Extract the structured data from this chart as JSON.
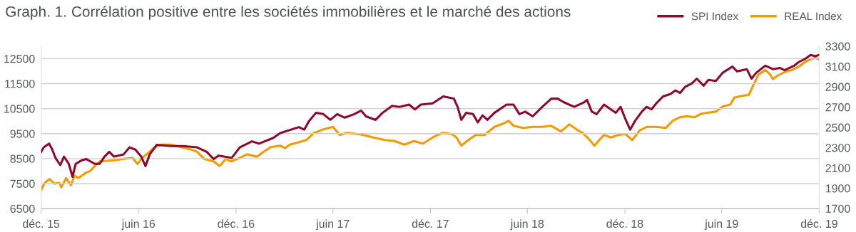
{
  "chart_data": {
    "type": "line",
    "title": "Graph. 1. Corrélation positive entre les sociétés immobilières et le marché des actions",
    "legend": "top right",
    "grid": "y",
    "marker": "none",
    "line_style": "solid",
    "xlim": [
      "2015-12-01",
      "2019-12-01"
    ],
    "xticks": [
      {
        "value": "2015-12-01",
        "label": "déc. 15"
      },
      {
        "value": "2016-06-01",
        "label": "juin 16"
      },
      {
        "value": "2016-12-01",
        "label": "déc. 16"
      },
      {
        "value": "2017-06-01",
        "label": "juin 17"
      },
      {
        "value": "2017-12-01",
        "label": "déc. 17"
      },
      {
        "value": "2018-06-01",
        "label": "juin 18"
      },
      {
        "value": "2018-12-01",
        "label": "déc. 18"
      },
      {
        "value": "2019-06-01",
        "label": "juin 19"
      },
      {
        "value": "2019-12-01",
        "label": "déc. 19"
      }
    ],
    "ylim": [
      6500,
      13000
    ],
    "yticks": [
      6500,
      7500,
      8500,
      9500,
      10500,
      11500,
      12500
    ],
    "y2lim": [
      1700,
      3300
    ],
    "y2ticks": [
      1700,
      1900,
      2100,
      2300,
      2500,
      2700,
      2900,
      3100,
      3300
    ],
    "series": [
      {
        "name": "SPI Index",
        "color": "#8b0a2e",
        "x": [
          "2015-12-01",
          "2015-12-06",
          "2015-12-16",
          "2015-12-22",
          "2015-12-28",
          "2016-01-06",
          "2016-01-13",
          "2016-01-22",
          "2016-01-29",
          "2016-02-04",
          "2016-02-15",
          "2016-02-24",
          "2016-03-11",
          "2016-03-20",
          "2016-03-29",
          "2016-04-07",
          "2016-04-16",
          "2016-05-04",
          "2016-05-15",
          "2016-05-26",
          "2016-06-06",
          "2016-06-14",
          "2016-06-22",
          "2016-07-05",
          "2016-08-01",
          "2016-08-23",
          "2016-09-19",
          "2016-10-07",
          "2016-10-20",
          "2016-10-29",
          "2016-11-23",
          "2016-12-08",
          "2016-12-31",
          "2017-01-13",
          "2017-02-09",
          "2017-02-22",
          "2017-03-29",
          "2017-04-08",
          "2017-04-17",
          "2017-04-30",
          "2017-05-14",
          "2017-05-27",
          "2017-06-09",
          "2017-06-23",
          "2017-07-11",
          "2017-07-24",
          "2017-08-02",
          "2017-08-20",
          "2017-09-02",
          "2017-09-20",
          "2017-10-04",
          "2017-10-22",
          "2017-11-02",
          "2017-11-13",
          "2017-12-05",
          "2017-12-25",
          "2018-01-14",
          "2018-01-21",
          "2018-01-28",
          "2018-02-06",
          "2018-02-19",
          "2018-02-28",
          "2018-03-09",
          "2018-03-18",
          "2018-03-31",
          "2018-04-23",
          "2018-05-06",
          "2018-05-17",
          "2018-05-28",
          "2018-06-11",
          "2018-06-29",
          "2018-07-16",
          "2018-07-28",
          "2018-08-08",
          "2018-08-28",
          "2018-09-16",
          "2018-09-21",
          "2018-09-30",
          "2018-10-09",
          "2018-10-23",
          "2018-11-14",
          "2018-11-23",
          "2018-12-02",
          "2018-12-11",
          "2018-12-20",
          "2019-01-02",
          "2019-01-11",
          "2019-01-20",
          "2019-01-29",
          "2019-02-11",
          "2019-02-25",
          "2019-03-06",
          "2019-03-15",
          "2019-03-24",
          "2019-04-06",
          "2019-04-15",
          "2019-04-28",
          "2019-05-07",
          "2019-05-21",
          "2019-06-03",
          "2019-06-21",
          "2019-06-30",
          "2019-07-18",
          "2019-07-27",
          "2019-08-05",
          "2019-08-22",
          "2019-09-05",
          "2019-09-18",
          "2019-09-27",
          "2019-10-15",
          "2019-10-24",
          "2019-11-06",
          "2019-11-15",
          "2019-11-24",
          "2019-12-01"
        ],
        "values": [
          8770,
          8950,
          9100,
          8860,
          8530,
          8240,
          8580,
          8290,
          7770,
          8290,
          8430,
          8480,
          8290,
          8290,
          8580,
          8770,
          8580,
          8670,
          8950,
          8860,
          8580,
          8200,
          8670,
          9050,
          9000,
          9000,
          8950,
          8770,
          8480,
          8620,
          8530,
          8950,
          9190,
          9100,
          9330,
          9520,
          9760,
          9660,
          10000,
          10330,
          10280,
          10050,
          10280,
          10140,
          10280,
          10420,
          10190,
          10050,
          10330,
          10610,
          10570,
          10660,
          10470,
          10660,
          10710,
          10990,
          10900,
          10570,
          10050,
          10330,
          10280,
          9950,
          10230,
          10050,
          10330,
          10660,
          10660,
          10280,
          10380,
          10190,
          10570,
          10900,
          10900,
          10760,
          10570,
          10760,
          10850,
          10380,
          10280,
          10660,
          10330,
          10570,
          10090,
          9660,
          10000,
          10380,
          10570,
          10470,
          10710,
          10990,
          11090,
          11230,
          11130,
          11370,
          11510,
          11700,
          11420,
          11650,
          11610,
          11940,
          12180,
          11990,
          12080,
          11700,
          11940,
          12220,
          12080,
          12130,
          12040,
          12220,
          12370,
          12510,
          12650,
          12600,
          12650
        ]
      },
      {
        "name": "REAL Index",
        "color": "#f29a00",
        "axis": "y2",
        "x": [
          "2015-12-01",
          "2015-12-08",
          "2015-12-17",
          "2015-12-26",
          "2016-01-04",
          "2016-01-08",
          "2016-01-17",
          "2016-01-26",
          "2016-02-02",
          "2016-02-09",
          "2016-02-22",
          "2016-03-02",
          "2016-03-11",
          "2016-03-20",
          "2016-04-16",
          "2016-05-04",
          "2016-05-21",
          "2016-05-30",
          "2016-06-08",
          "2016-06-22",
          "2016-07-01",
          "2016-07-14",
          "2016-08-01",
          "2016-08-19",
          "2016-09-06",
          "2016-09-19",
          "2016-10-02",
          "2016-10-20",
          "2016-10-31",
          "2016-11-12",
          "2016-11-21",
          "2016-12-04",
          "2016-12-22",
          "2017-01-09",
          "2017-01-22",
          "2017-02-04",
          "2017-02-22",
          "2017-03-03",
          "2017-03-12",
          "2017-03-29",
          "2017-04-12",
          "2017-04-26",
          "2017-05-14",
          "2017-06-01",
          "2017-06-14",
          "2017-06-27",
          "2017-07-15",
          "2017-07-29",
          "2017-08-16",
          "2017-09-07",
          "2017-09-25",
          "2017-10-13",
          "2017-10-31",
          "2017-11-17",
          "2017-12-05",
          "2017-12-23",
          "2018-01-10",
          "2018-01-19",
          "2018-01-28",
          "2018-02-10",
          "2018-02-24",
          "2018-03-13",
          "2018-03-31",
          "2018-04-18",
          "2018-04-27",
          "2018-05-06",
          "2018-05-24",
          "2018-06-11",
          "2018-06-29",
          "2018-07-16",
          "2018-08-03",
          "2018-08-19",
          "2018-09-04",
          "2018-09-13",
          "2018-09-26",
          "2018-10-05",
          "2018-10-14",
          "2018-10-23",
          "2018-11-05",
          "2018-11-19",
          "2018-12-02",
          "2018-12-15",
          "2018-12-29",
          "2019-01-11",
          "2019-01-29",
          "2019-02-16",
          "2019-03-01",
          "2019-03-15",
          "2019-03-28",
          "2019-04-11",
          "2019-04-24",
          "2019-05-07",
          "2019-05-21",
          "2019-06-03",
          "2019-06-17",
          "2019-06-25",
          "2019-07-09",
          "2019-07-22",
          "2019-07-31",
          "2019-08-09",
          "2019-08-22",
          "2019-08-31",
          "2019-09-05",
          "2019-09-14",
          "2019-09-27",
          "2019-10-11",
          "2019-10-24",
          "2019-11-06",
          "2019-11-15",
          "2019-11-24",
          "2019-12-01"
        ],
        "values": [
          1885,
          1955,
          1990,
          1945,
          1955,
          1910,
          2000,
          1930,
          2025,
          2000,
          2050,
          2070,
          2120,
          2165,
          2175,
          2190,
          2200,
          2140,
          2200,
          2260,
          2305,
          2330,
          2330,
          2305,
          2285,
          2260,
          2190,
          2165,
          2120,
          2190,
          2165,
          2190,
          2235,
          2210,
          2260,
          2305,
          2320,
          2295,
          2330,
          2355,
          2375,
          2445,
          2480,
          2505,
          2425,
          2445,
          2435,
          2425,
          2400,
          2375,
          2365,
          2330,
          2365,
          2340,
          2400,
          2445,
          2435,
          2400,
          2320,
          2375,
          2425,
          2425,
          2505,
          2540,
          2565,
          2515,
          2495,
          2505,
          2505,
          2515,
          2460,
          2530,
          2470,
          2445,
          2375,
          2320,
          2375,
          2425,
          2400,
          2425,
          2435,
          2375,
          2470,
          2505,
          2505,
          2495,
          2565,
          2600,
          2610,
          2600,
          2635,
          2645,
          2655,
          2705,
          2725,
          2795,
          2810,
          2820,
          2925,
          3020,
          3065,
          3020,
          2975,
          3010,
          3045,
          3065,
          3100,
          3150,
          3170,
          3185,
          3170
        ]
      }
    ]
  }
}
